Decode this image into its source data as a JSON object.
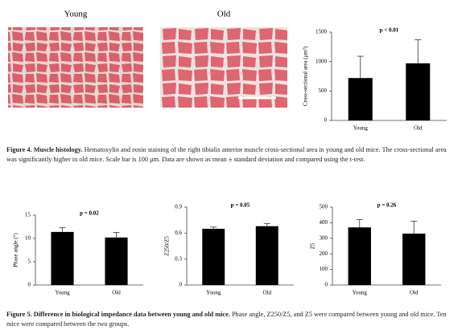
{
  "image_labels": [
    "Young",
    "Old"
  ],
  "chart_data": [
    {
      "type": "bar",
      "annotation": "p < 0.01",
      "y_label": "Cross-sectional area (μm²)",
      "categories": [
        "Young",
        "Old"
      ],
      "values": [
        720,
        970
      ],
      "errors": [
        370,
        400
      ],
      "color": "#000000",
      "ylim": [
        0,
        1500
      ],
      "yticks": [
        0,
        500,
        1000,
        1500
      ]
    },
    {
      "type": "bar",
      "annotation": "p = 0.02",
      "y_label": "Phase angle (°)",
      "categories": [
        "Young",
        "Old"
      ],
      "values": [
        11.4,
        10.2
      ],
      "errors": [
        0.9,
        1.1
      ],
      "color": "#000000",
      "ylim": [
        0,
        15
      ],
      "yticks": [
        0,
        5,
        10,
        15
      ]
    },
    {
      "type": "bar",
      "annotation": "p = 0.05",
      "y_label": "Z250/Z5",
      "categories": [
        "Young",
        "Old"
      ],
      "values": [
        0.65,
        0.68
      ],
      "errors": [
        0.02,
        0.03
      ],
      "color": "#000000",
      "ylim": [
        0,
        0.9
      ],
      "yticks": [
        0,
        0.3,
        0.6,
        0.9
      ]
    },
    {
      "type": "bar",
      "annotation": "p = 0.26",
      "y_label": "Z5",
      "categories": [
        "Young",
        "Old"
      ],
      "values": [
        370,
        330
      ],
      "errors": [
        50,
        80
      ],
      "color": "#000000",
      "ylim": [
        0,
        500
      ],
      "yticks": [
        0,
        100,
        200,
        300,
        400,
        500
      ]
    }
  ],
  "figure4_caption": {
    "label": "Figure 4. Muscle histology.",
    "text": "Hematoxylin and eosin staining of the right tibialis anterior muscle cross-sectional area in young and old mice. The cross-sectional area was significantly higher in old mice. Scale bar is 100 μm. Data are shown as mean ± standard deviation and compared using the t-test."
  },
  "figure5_caption": {
    "label": "Figure 5. Difference in biological impedance data between young and old mice.",
    "text": "Phase angle, Z250/Z5, and Z5 were compared between young and old mice. Ten mice were compared between the two groups."
  }
}
